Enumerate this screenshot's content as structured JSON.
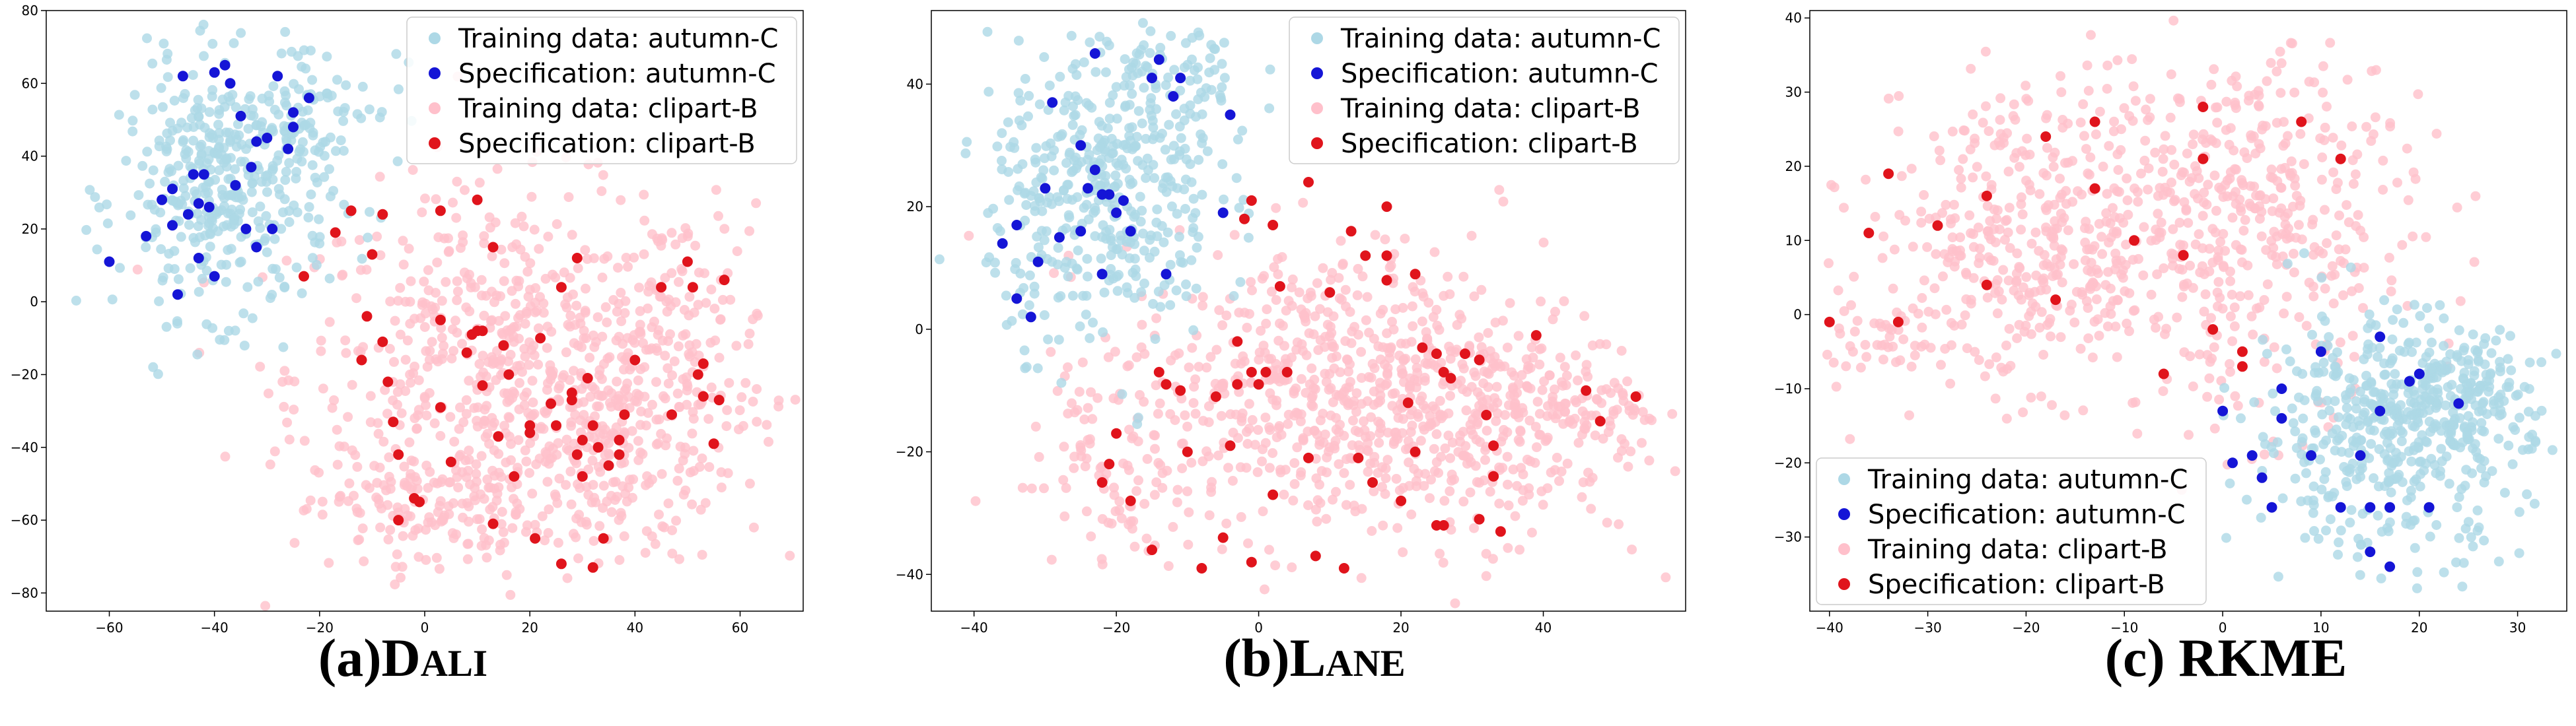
{
  "colors": {
    "train_autumn": "#add8e6",
    "spec_autumn": "#1515d6",
    "train_clipart": "#ffc0cb",
    "spec_clipart": "#e0141c"
  },
  "chart_data": [
    {
      "type": "scatter",
      "caption": {
        "prefix": "(a)",
        "name": "Dali",
        "style": "small-caps"
      },
      "xlim": [
        -72,
        72
      ],
      "ylim": [
        -85,
        80
      ],
      "xticks": [
        -60,
        -40,
        -20,
        0,
        20,
        40,
        60
      ],
      "yticks": [
        -80,
        -60,
        -40,
        -20,
        0,
        20,
        40,
        60,
        80
      ],
      "legend": {
        "position": "top-right",
        "entries": [
          "Training data: autumn-C",
          "Specification: autumn-C",
          "Training data: clipart-B",
          "Specification: clipart-B"
        ]
      },
      "clusters": {
        "autumn": [
          {
            "cx": -38,
            "cy": 30,
            "sx": 10,
            "sy": 17,
            "n": 380
          },
          {
            "cx": -22,
            "cy": 55,
            "sx": 9,
            "sy": 9,
            "n": 80
          }
        ],
        "clipart": [
          {
            "cx": 15,
            "cy": -20,
            "sx": 20,
            "sy": 25,
            "n": 600
          },
          {
            "cx": 32,
            "cy": -40,
            "sx": 14,
            "sy": 16,
            "n": 200
          },
          {
            "cx": 0,
            "cy": -58,
            "sx": 10,
            "sy": 8,
            "n": 100
          },
          {
            "cx": 48,
            "cy": -10,
            "sx": 9,
            "sy": 18,
            "n": 120
          }
        ]
      },
      "series": [
        {
          "name": "Specification: autumn-C",
          "points": [
            [
              -46,
              62
            ],
            [
              -40,
              63
            ],
            [
              -38,
              65
            ],
            [
              -37,
              60
            ],
            [
              -28,
              62
            ],
            [
              -22,
              56
            ],
            [
              -30,
              45
            ],
            [
              -25,
              52
            ],
            [
              -44,
              35
            ],
            [
              -42,
              35
            ],
            [
              -43,
              27
            ],
            [
              -41,
              26
            ],
            [
              -48,
              31
            ],
            [
              -35,
              51
            ],
            [
              -36,
              32
            ],
            [
              -48,
              21
            ],
            [
              -45,
              24
            ],
            [
              -34,
              20
            ],
            [
              -29,
              20
            ],
            [
              -32,
              15
            ],
            [
              -43,
              12
            ],
            [
              -40,
              7
            ],
            [
              -47,
              2
            ],
            [
              -53,
              18
            ],
            [
              -50,
              28
            ],
            [
              -60,
              11
            ],
            [
              -33,
              37
            ],
            [
              -25,
              48
            ],
            [
              -32,
              44
            ],
            [
              -26,
              42
            ]
          ]
        },
        {
          "name": "Specification: clipart-B",
          "points": [
            [
              -23,
              7
            ],
            [
              -17,
              19
            ],
            [
              -14,
              25
            ],
            [
              -11,
              -4
            ],
            [
              -10,
              13
            ],
            [
              -8,
              24
            ],
            [
              -8,
              -11
            ],
            [
              -7,
              -22
            ],
            [
              -6,
              -33
            ],
            [
              -5,
              -42
            ],
            [
              -1,
              -55
            ],
            [
              -2,
              -54
            ],
            [
              3,
              25
            ],
            [
              3,
              -5
            ],
            [
              3,
              -29
            ],
            [
              5,
              -44
            ],
            [
              8,
              -14
            ],
            [
              10,
              28
            ],
            [
              9,
              -9
            ],
            [
              10,
              -8
            ],
            [
              11,
              -8
            ],
            [
              11,
              -23
            ],
            [
              13,
              15
            ],
            [
              13,
              -61
            ],
            [
              15,
              -12
            ],
            [
              20,
              -34
            ],
            [
              21,
              -65
            ],
            [
              22,
              -10
            ],
            [
              24,
              -28
            ],
            [
              25,
              -34
            ],
            [
              26,
              -72
            ],
            [
              28,
              -27
            ],
            [
              29,
              -42
            ],
            [
              30,
              -48
            ],
            [
              31,
              -21
            ],
            [
              32,
              -34
            ],
            [
              32,
              -73
            ],
            [
              34,
              -65
            ],
            [
              35,
              -45
            ],
            [
              37,
              -42
            ],
            [
              37,
              -38
            ],
            [
              38,
              -31
            ],
            [
              40,
              -16
            ],
            [
              45,
              4
            ],
            [
              47,
              -31
            ],
            [
              50,
              11
            ],
            [
              51,
              4
            ],
            [
              52,
              -20
            ],
            [
              53,
              -26
            ],
            [
              53,
              -17
            ],
            [
              55,
              -39
            ],
            [
              56,
              -27
            ],
            [
              57,
              6
            ],
            [
              20,
              -36
            ],
            [
              28,
              -25
            ],
            [
              30,
              -38
            ],
            [
              33,
              -40
            ],
            [
              16,
              -20
            ],
            [
              14,
              -37
            ],
            [
              -12,
              -16
            ],
            [
              26,
              4
            ],
            [
              -5,
              -60
            ],
            [
              17,
              -48
            ],
            [
              29,
              12
            ]
          ]
        }
      ]
    },
    {
      "type": "scatter",
      "caption": {
        "prefix": "(b)",
        "name": "Lane",
        "style": "small-caps"
      },
      "xlim": [
        -46,
        60
      ],
      "ylim": [
        -46,
        52
      ],
      "xticks": [
        -40,
        -20,
        0,
        20,
        40
      ],
      "yticks": [
        -40,
        -20,
        0,
        20,
        40
      ],
      "legend": {
        "position": "top-right",
        "entries": [
          "Training data: autumn-C",
          "Specification: autumn-C",
          "Training data: clipart-B",
          "Specification: clipart-B"
        ]
      },
      "clusters": {
        "autumn": [
          {
            "cx": -22,
            "cy": 22,
            "sx": 8,
            "sy": 12,
            "n": 420
          },
          {
            "cx": -12,
            "cy": 40,
            "sx": 6,
            "sy": 6,
            "n": 80
          }
        ],
        "clipart": [
          {
            "cx": 10,
            "cy": -10,
            "sx": 15,
            "sy": 12,
            "n": 600
          },
          {
            "cx": 30,
            "cy": -15,
            "sx": 12,
            "sy": 10,
            "n": 250
          },
          {
            "cx": 45,
            "cy": -12,
            "sx": 6,
            "sy": 4,
            "n": 60
          },
          {
            "cx": -20,
            "cy": -22,
            "sx": 6,
            "sy": 8,
            "n": 80
          }
        ]
      },
      "series": [
        {
          "name": "Specification: autumn-C",
          "points": [
            [
              -23,
              45
            ],
            [
              -14,
              44
            ],
            [
              -15,
              41
            ],
            [
              -11,
              41
            ],
            [
              -12,
              38
            ],
            [
              -29,
              37
            ],
            [
              -4,
              35
            ],
            [
              -25,
              30
            ],
            [
              -30,
              23
            ],
            [
              -23,
              26
            ],
            [
              -21,
              22
            ],
            [
              -19,
              21
            ],
            [
              -24,
              23
            ],
            [
              -22,
              22
            ],
            [
              -20,
              19
            ],
            [
              -25,
              16
            ],
            [
              -28,
              15
            ],
            [
              -18,
              16
            ],
            [
              -34,
              17
            ],
            [
              -36,
              14
            ],
            [
              -31,
              11
            ],
            [
              -13,
              9
            ],
            [
              -22,
              9
            ],
            [
              -34,
              5
            ],
            [
              -32,
              2
            ],
            [
              -5,
              19
            ]
          ]
        },
        {
          "name": "Specification: clipart-B",
          "points": [
            [
              -1,
              21
            ],
            [
              -2,
              18
            ],
            [
              2,
              17
            ],
            [
              3,
              7
            ],
            [
              7,
              24
            ],
            [
              10,
              6
            ],
            [
              13,
              16
            ],
            [
              15,
              12
            ],
            [
              18,
              8
            ],
            [
              18,
              12
            ],
            [
              18,
              20
            ],
            [
              22,
              9
            ],
            [
              23,
              -3
            ],
            [
              25,
              -4
            ],
            [
              26,
              -7
            ],
            [
              27,
              -8
            ],
            [
              29,
              -4
            ],
            [
              31,
              -5
            ],
            [
              32,
              -14
            ],
            [
              33,
              -19
            ],
            [
              33,
              -24
            ],
            [
              31,
              -31
            ],
            [
              34,
              -33
            ],
            [
              39,
              -1
            ],
            [
              46,
              -10
            ],
            [
              48,
              -15
            ],
            [
              53,
              -11
            ],
            [
              26,
              -32
            ],
            [
              25,
              -32
            ],
            [
              22,
              -20
            ],
            [
              21,
              -12
            ],
            [
              16,
              -25
            ],
            [
              12,
              -39
            ],
            [
              8,
              -37
            ],
            [
              2,
              -27
            ],
            [
              -1,
              -38
            ],
            [
              -5,
              -34
            ],
            [
              -8,
              -39
            ],
            [
              -10,
              -20
            ],
            [
              -13,
              -9
            ],
            [
              -14,
              -7
            ],
            [
              -15,
              -36
            ],
            [
              -11,
              -10
            ],
            [
              -3,
              -9
            ],
            [
              -1,
              -7
            ],
            [
              -4,
              -19
            ],
            [
              -6,
              -11
            ],
            [
              -18,
              -28
            ],
            [
              -20,
              -17
            ],
            [
              -21,
              -22
            ],
            [
              -22,
              -25
            ],
            [
              7,
              -21
            ],
            [
              1,
              -7
            ],
            [
              0,
              -9
            ],
            [
              -3,
              -2
            ],
            [
              4,
              -7
            ],
            [
              14,
              -21
            ],
            [
              20,
              -28
            ]
          ]
        }
      ]
    },
    {
      "type": "scatter",
      "caption": {
        "prefix": "(c)",
        "name": "RKME",
        "style": "normal"
      },
      "xlim": [
        -42,
        35
      ],
      "ylim": [
        -40,
        41
      ],
      "xticks": [
        -40,
        -30,
        -20,
        -10,
        0,
        10,
        20,
        30
      ],
      "yticks": [
        -30,
        -20,
        -10,
        0,
        10,
        20,
        30,
        40
      ],
      "legend": {
        "position": "bottom-left",
        "entries": [
          "Training data: autumn-C",
          "Specification: autumn-C",
          "Training data: clipart-B",
          "Specification: clipart-B"
        ]
      },
      "clusters": {
        "autumn": [
          {
            "cx": 17,
            "cy": -16,
            "sx": 7,
            "sy": 8,
            "n": 460
          },
          {
            "cx": 24,
            "cy": -10,
            "sx": 4,
            "sy": 4,
            "n": 120
          }
        ],
        "clipart": [
          {
            "cx": -20,
            "cy": 10,
            "sx": 8,
            "sy": 10,
            "n": 360
          },
          {
            "cx": 0,
            "cy": 10,
            "sx": 10,
            "sy": 12,
            "n": 380
          },
          {
            "cx": 5,
            "cy": 20,
            "sx": 6,
            "sy": 7,
            "n": 100
          },
          {
            "cx": -35,
            "cy": -2,
            "sx": 3,
            "sy": 3,
            "n": 40
          }
        ]
      },
      "series": [
        {
          "name": "Specification: autumn-C",
          "points": [
            [
              16,
              -3
            ],
            [
              10,
              -5
            ],
            [
              19,
              -9
            ],
            [
              6,
              -10
            ],
            [
              24,
              -12
            ],
            [
              6,
              -14
            ],
            [
              0,
              -13
            ],
            [
              16,
              -13
            ],
            [
              9,
              -19
            ],
            [
              14,
              -19
            ],
            [
              3,
              -19
            ],
            [
              4,
              -22
            ],
            [
              5,
              -26
            ],
            [
              12,
              -26
            ],
            [
              15,
              -26
            ],
            [
              17,
              -26
            ],
            [
              21,
              -26
            ],
            [
              17,
              -34
            ],
            [
              15,
              -32
            ],
            [
              20,
              -8
            ],
            [
              1,
              -20
            ]
          ]
        },
        {
          "name": "Specification: clipart-B",
          "points": [
            [
              -2,
              28
            ],
            [
              -13,
              26
            ],
            [
              -18,
              24
            ],
            [
              8,
              26
            ],
            [
              -2,
              21
            ],
            [
              12,
              21
            ],
            [
              -34,
              19
            ],
            [
              -13,
              17
            ],
            [
              -24,
              16
            ],
            [
              -29,
              12
            ],
            [
              -36,
              11
            ],
            [
              -9,
              10
            ],
            [
              -4,
              8
            ],
            [
              -24,
              4
            ],
            [
              -17,
              2
            ],
            [
              -33,
              -1
            ],
            [
              -40,
              -1
            ],
            [
              -1,
              -2
            ],
            [
              2,
              -7
            ],
            [
              -6,
              -8
            ],
            [
              2,
              -5
            ]
          ]
        }
      ]
    }
  ]
}
